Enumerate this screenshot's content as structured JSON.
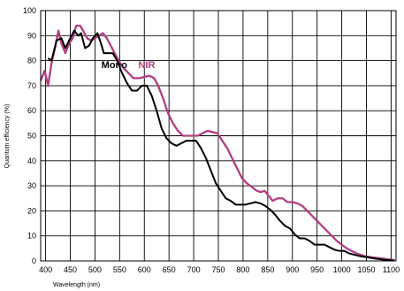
{
  "chart_data": {
    "type": "line",
    "xlabel": "Wavelength (nm)",
    "ylabel": "Quantum efficiency (%)",
    "xlim": [
      390,
      1110
    ],
    "ylim": [
      0,
      100
    ],
    "xticks": [
      400,
      450,
      500,
      550,
      600,
      650,
      700,
      750,
      800,
      850,
      900,
      950,
      1000,
      1050,
      1100
    ],
    "yticks": [
      0,
      10,
      20,
      30,
      40,
      50,
      60,
      70,
      80,
      90,
      100
    ],
    "grid": true,
    "series": [
      {
        "name": "Mono",
        "color": "#000000",
        "label_at": [
          513,
          77
        ],
        "points": [
          [
            405,
            81
          ],
          [
            412,
            80
          ],
          [
            422,
            88
          ],
          [
            432,
            89
          ],
          [
            440,
            85
          ],
          [
            450,
            89
          ],
          [
            458,
            92
          ],
          [
            466,
            90
          ],
          [
            472,
            91
          ],
          [
            480,
            85
          ],
          [
            488,
            86
          ],
          [
            496,
            89
          ],
          [
            505,
            91
          ],
          [
            512,
            87
          ],
          [
            518,
            83
          ],
          [
            528,
            83
          ],
          [
            536,
            83
          ],
          [
            545,
            80
          ],
          [
            555,
            75
          ],
          [
            565,
            71
          ],
          [
            575,
            68
          ],
          [
            585,
            68
          ],
          [
            595,
            70
          ],
          [
            605,
            70
          ],
          [
            615,
            66
          ],
          [
            625,
            60
          ],
          [
            635,
            53
          ],
          [
            645,
            49
          ],
          [
            655,
            47
          ],
          [
            665,
            46
          ],
          [
            675,
            47
          ],
          [
            685,
            48
          ],
          [
            695,
            48
          ],
          [
            705,
            48
          ],
          [
            715,
            45
          ],
          [
            725,
            41
          ],
          [
            735,
            36
          ],
          [
            745,
            31
          ],
          [
            755,
            28
          ],
          [
            765,
            25
          ],
          [
            775,
            24
          ],
          [
            785,
            22.5
          ],
          [
            795,
            22.5
          ],
          [
            805,
            22.5
          ],
          [
            815,
            23
          ],
          [
            825,
            23.5
          ],
          [
            835,
            23
          ],
          [
            845,
            22
          ],
          [
            855,
            20.5
          ],
          [
            865,
            18.5
          ],
          [
            875,
            16
          ],
          [
            885,
            14
          ],
          [
            895,
            13
          ],
          [
            905,
            10.5
          ],
          [
            915,
            9
          ],
          [
            925,
            9
          ],
          [
            935,
            8
          ],
          [
            945,
            6.5
          ],
          [
            955,
            6.5
          ],
          [
            965,
            6.5
          ],
          [
            975,
            5.5
          ],
          [
            985,
            4.5
          ],
          [
            995,
            4
          ],
          [
            1005,
            4
          ],
          [
            1015,
            3
          ],
          [
            1025,
            2.5
          ],
          [
            1035,
            2
          ],
          [
            1050,
            1.5
          ],
          [
            1065,
            1
          ],
          [
            1080,
            0.6
          ],
          [
            1095,
            0.3
          ],
          [
            1105,
            0.2
          ]
        ]
      },
      {
        "name": "NIR",
        "color": "#b33d80",
        "label_at": [
          588,
          77
        ],
        "points": [
          [
            390,
            72
          ],
          [
            398,
            76
          ],
          [
            405,
            70
          ],
          [
            412,
            79
          ],
          [
            420,
            86
          ],
          [
            426,
            92
          ],
          [
            432,
            87
          ],
          [
            440,
            83
          ],
          [
            448,
            87
          ],
          [
            455,
            89
          ],
          [
            462,
            94
          ],
          [
            470,
            94
          ],
          [
            476,
            92
          ],
          [
            484,
            89
          ],
          [
            492,
            88
          ],
          [
            500,
            89
          ],
          [
            508,
            90
          ],
          [
            516,
            91
          ],
          [
            524,
            89
          ],
          [
            532,
            86
          ],
          [
            540,
            83
          ],
          [
            548,
            80
          ],
          [
            558,
            77
          ],
          [
            568,
            75
          ],
          [
            578,
            73
          ],
          [
            590,
            73
          ],
          [
            600,
            73.5
          ],
          [
            610,
            74
          ],
          [
            620,
            73
          ],
          [
            628,
            70
          ],
          [
            638,
            65
          ],
          [
            648,
            59
          ],
          [
            658,
            55
          ],
          [
            668,
            52
          ],
          [
            678,
            50
          ],
          [
            688,
            50
          ],
          [
            698,
            50
          ],
          [
            708,
            50
          ],
          [
            718,
            51
          ],
          [
            728,
            52
          ],
          [
            738,
            51.5
          ],
          [
            748,
            51
          ],
          [
            758,
            48
          ],
          [
            768,
            45
          ],
          [
            778,
            41
          ],
          [
            788,
            37
          ],
          [
            798,
            33
          ],
          [
            808,
            31
          ],
          [
            818,
            29.5
          ],
          [
            828,
            28
          ],
          [
            836,
            27.5
          ],
          [
            844,
            28
          ],
          [
            852,
            26
          ],
          [
            860,
            24
          ],
          [
            870,
            25
          ],
          [
            880,
            25
          ],
          [
            890,
            23.5
          ],
          [
            900,
            23.5
          ],
          [
            910,
            23
          ],
          [
            920,
            22
          ],
          [
            930,
            20
          ],
          [
            940,
            18
          ],
          [
            950,
            16
          ],
          [
            960,
            14
          ],
          [
            970,
            12
          ],
          [
            980,
            10
          ],
          [
            990,
            8
          ],
          [
            1000,
            6.5
          ],
          [
            1010,
            5
          ],
          [
            1020,
            4
          ],
          [
            1030,
            3
          ],
          [
            1045,
            2
          ],
          [
            1060,
            1.5
          ],
          [
            1080,
            1
          ],
          [
            1100,
            0.5
          ],
          [
            1108,
            0.3
          ]
        ]
      }
    ]
  }
}
